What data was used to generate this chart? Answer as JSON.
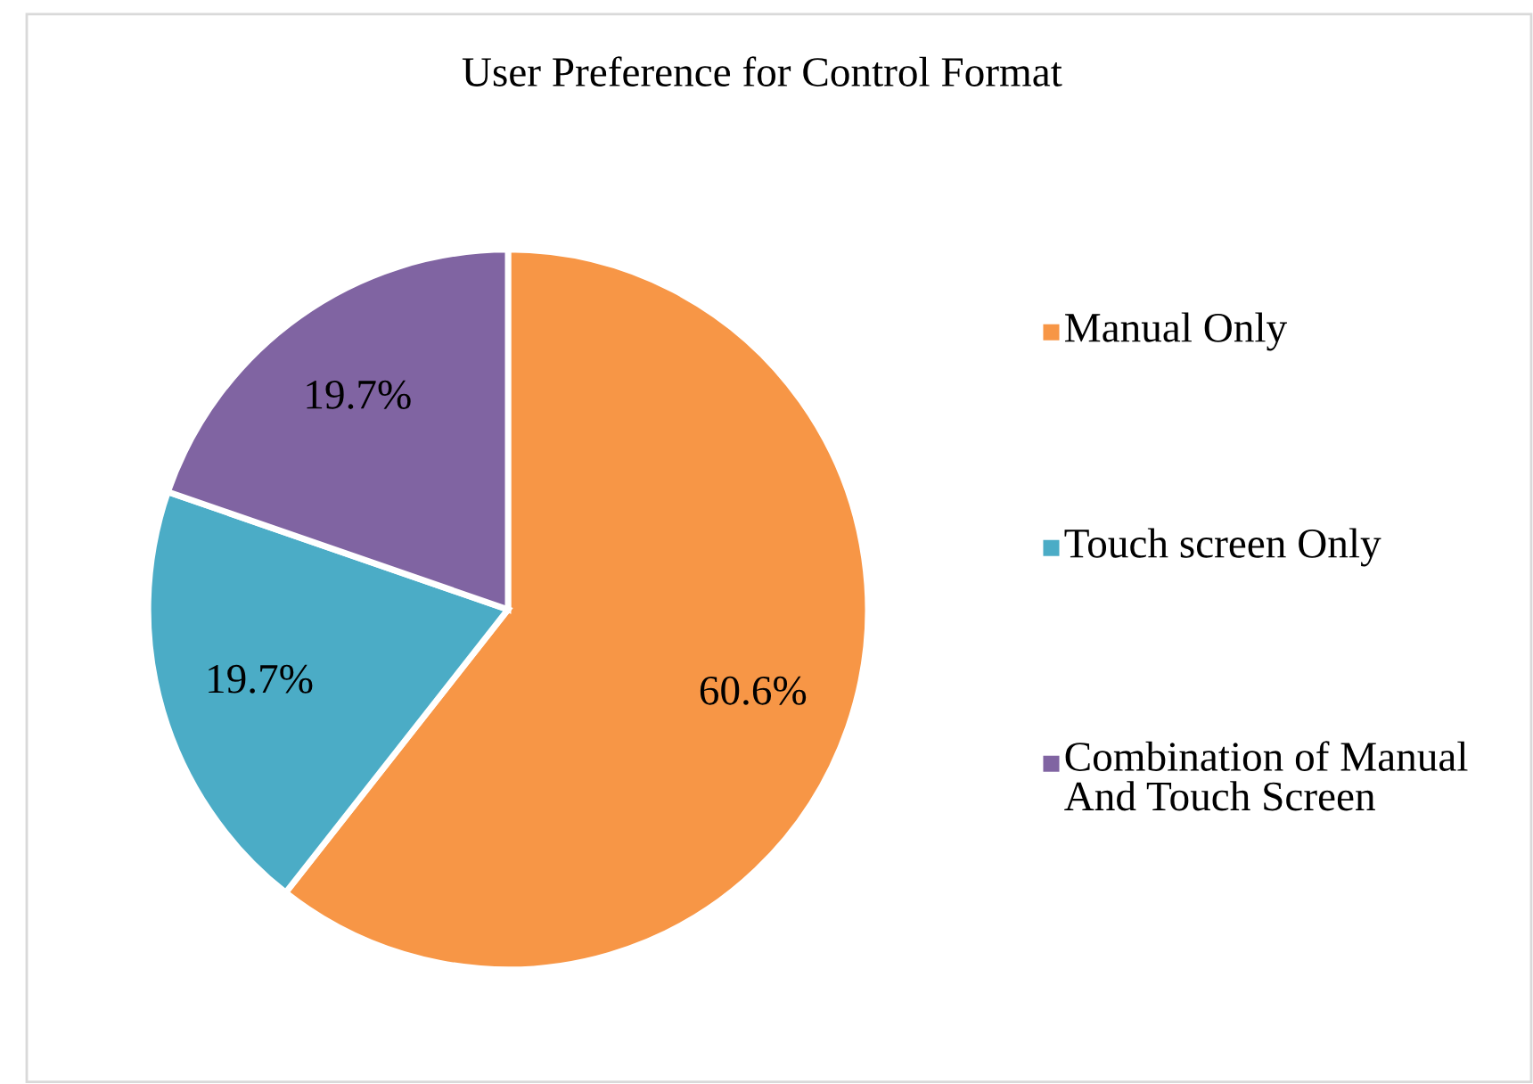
{
  "chart_data": {
    "type": "pie",
    "title": "User Preference for Control Format",
    "categories": [
      "Manual Only",
      "Touch screen Only",
      "Combination of Manual And Touch Screen"
    ],
    "values": [
      60.6,
      19.7,
      19.7
    ],
    "colors": [
      "#f79646",
      "#4bacc6",
      "#8064a2"
    ],
    "value_labels": [
      "60.6%",
      "19.7%",
      "19.7%"
    ],
    "legend": "right"
  }
}
